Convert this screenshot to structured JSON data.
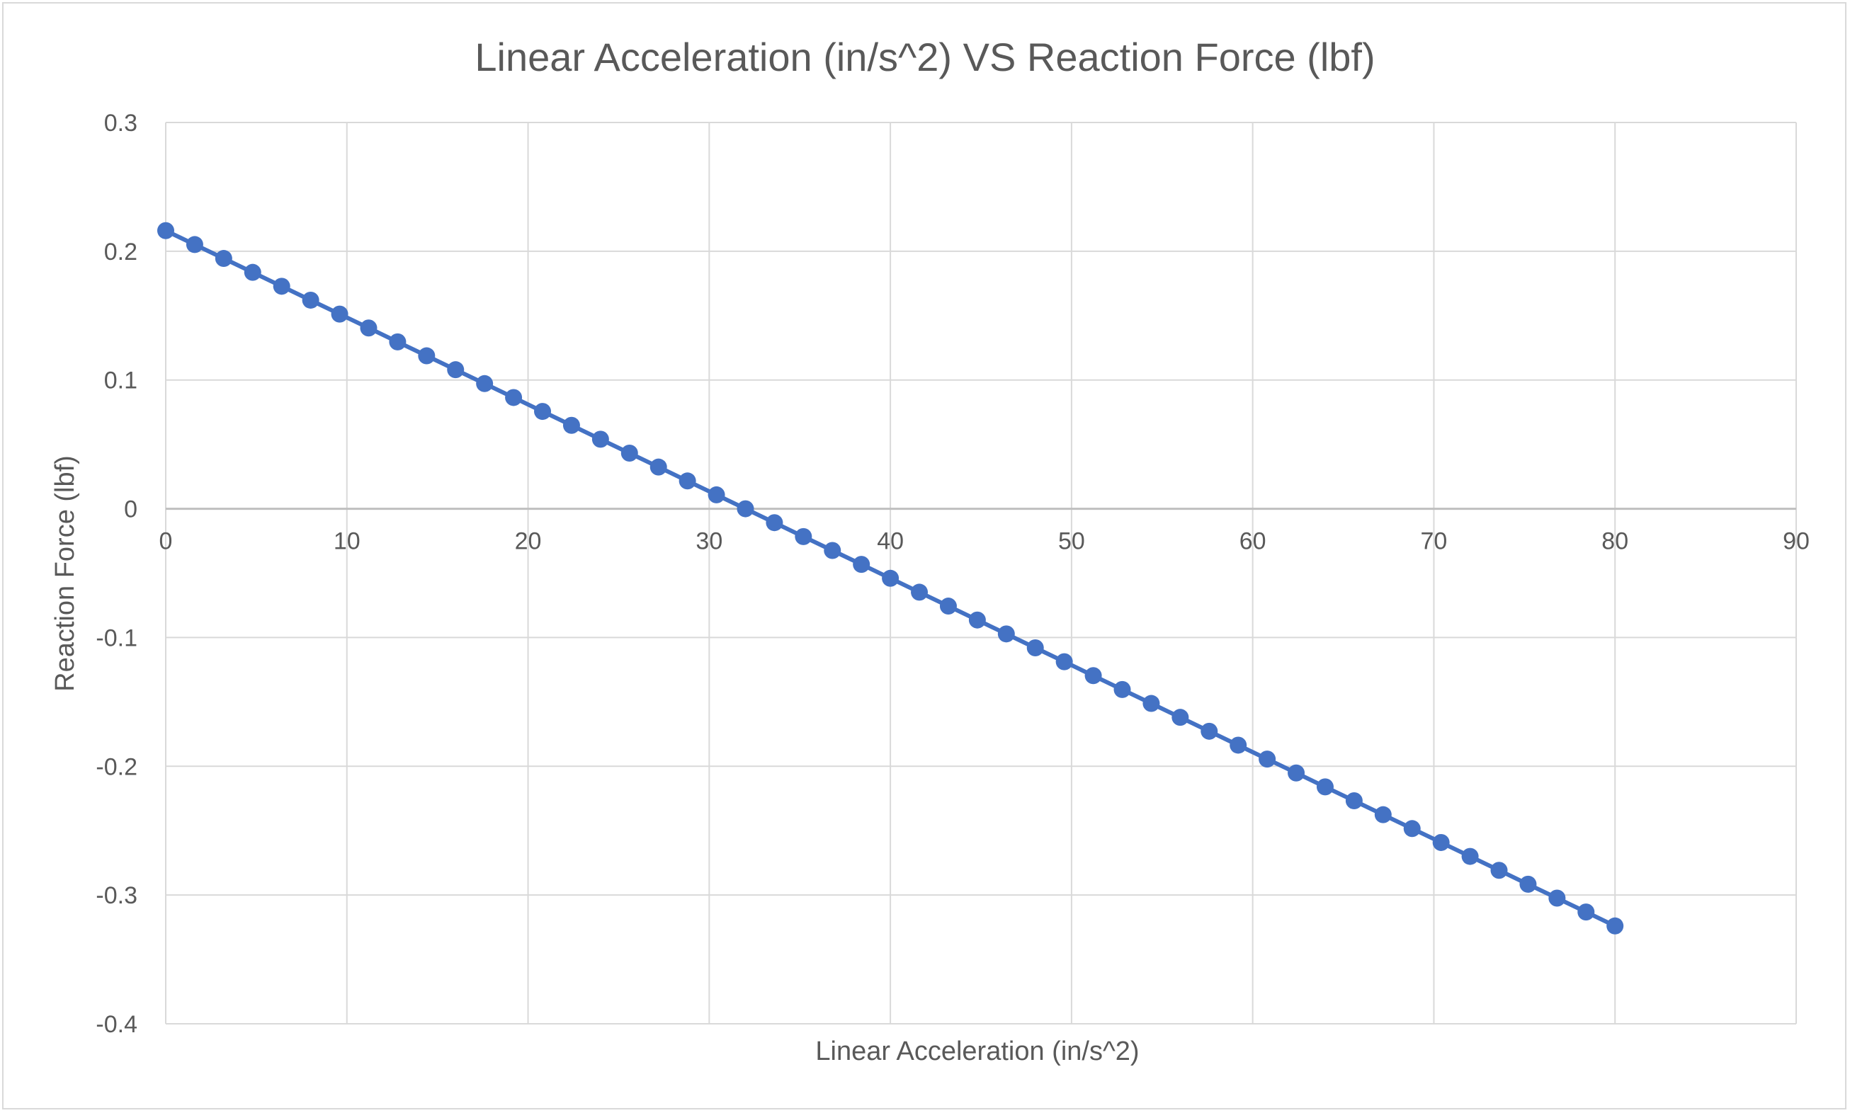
{
  "chart_data": {
    "type": "scatter",
    "title": "Linear Acceleration (in/s^2) VS Reaction Force (lbf)",
    "xlabel": "Linear Acceleration (in/s^2)",
    "ylabel": "Reaction Force (lbf)",
    "xlim": [
      0,
      90
    ],
    "ylim": [
      -0.4,
      0.3
    ],
    "xticks": [
      0,
      10,
      20,
      30,
      40,
      50,
      60,
      70,
      80,
      90
    ],
    "yticks": [
      0.3,
      0.2,
      0.1,
      0,
      -0.1,
      -0.2,
      -0.3,
      -0.4
    ],
    "xtick_labels": [
      "0",
      "10",
      "20",
      "30",
      "40",
      "50",
      "60",
      "70",
      "80",
      "90"
    ],
    "ytick_labels": [
      "0.3",
      "0.2",
      "0.1",
      "0",
      "-0.1",
      "-0.2",
      "-0.3",
      "-0.4"
    ],
    "grid": true,
    "color": "#4472c4",
    "series": [
      {
        "x": [
          0,
          1.6,
          3.2,
          4.8,
          6.4,
          8.0,
          9.6,
          11.2,
          12.8,
          14.4,
          16.0,
          17.6,
          19.2,
          20.8,
          22.4,
          24.0,
          25.6,
          27.2,
          28.8,
          30.4,
          32.0,
          33.6,
          35.2,
          36.8,
          38.4,
          40.0,
          41.6,
          43.2,
          44.8,
          46.4,
          48.0,
          49.6,
          51.2,
          52.8,
          54.4,
          56.0,
          57.6,
          59.2,
          60.8,
          62.4,
          64.0,
          65.6,
          67.2,
          68.8,
          70.4,
          72.0,
          73.6,
          75.2,
          76.8,
          78.4,
          80.0
        ],
        "y": [
          0.216,
          0.2052,
          0.1944,
          0.1836,
          0.1728,
          0.162,
          0.1512,
          0.1404,
          0.1296,
          0.1188,
          0.108,
          0.0972,
          0.0864,
          0.0756,
          0.0648,
          0.054,
          0.0432,
          0.0324,
          0.0216,
          0.0108,
          0.0,
          -0.0108,
          -0.0216,
          -0.0324,
          -0.0432,
          -0.054,
          -0.0648,
          -0.0756,
          -0.0864,
          -0.0972,
          -0.108,
          -0.1188,
          -0.1296,
          -0.1404,
          -0.1512,
          -0.162,
          -0.1728,
          -0.1836,
          -0.1944,
          -0.2052,
          -0.216,
          -0.2268,
          -0.2376,
          -0.2484,
          -0.2592,
          -0.27,
          -0.2808,
          -0.2916,
          -0.3024,
          -0.3132,
          -0.324
        ]
      }
    ]
  }
}
